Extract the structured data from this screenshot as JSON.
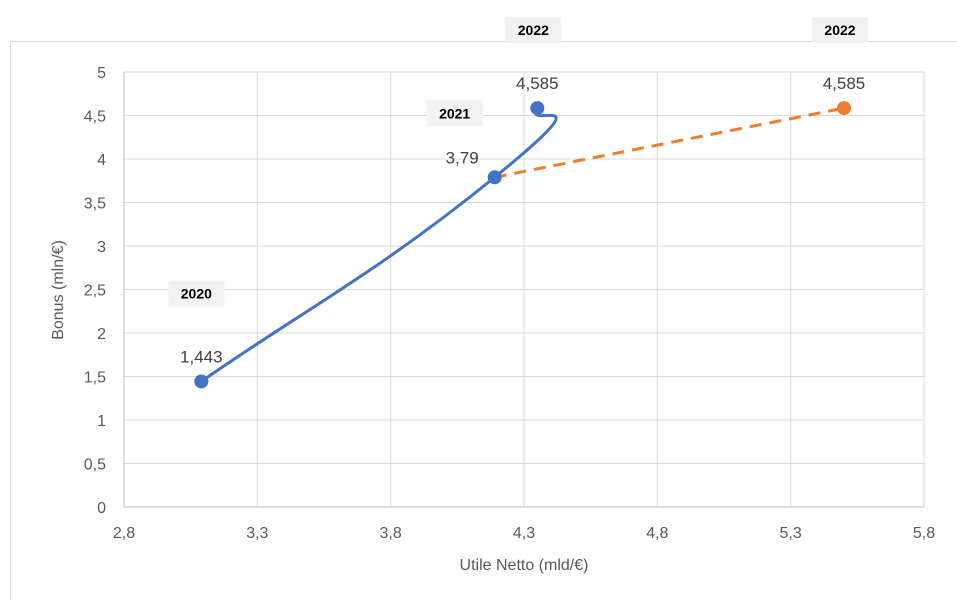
{
  "chart_data": {
    "type": "scatter",
    "title": "",
    "xlabel": "Utile Netto (mld/€)",
    "ylabel": "Bonus (mln/€)",
    "xlim": [
      2.8,
      5.8
    ],
    "ylim": [
      0,
      5
    ],
    "x_ticks": [
      "2,8",
      "3,3",
      "3,8",
      "4,3",
      "4,8",
      "5,3",
      "5,8"
    ],
    "y_ticks": [
      "0",
      "0,5",
      "1",
      "1,5",
      "2",
      "2,5",
      "3",
      "3,5",
      "4",
      "4,5",
      "5"
    ],
    "grid": true,
    "legend": "none",
    "series": [
      {
        "color": "#4472C4",
        "line_style": "solid-smooth",
        "points": [
          {
            "x": 3.09,
            "y": 1.443,
            "label": "1,443",
            "year": "2020"
          },
          {
            "x": 4.19,
            "y": 3.79,
            "label": "3,79",
            "year": "2021"
          },
          {
            "x": 4.35,
            "y": 4.585,
            "label": "4,585",
            "year": "2022"
          }
        ]
      },
      {
        "color": "#ED7D31",
        "line_style": "dashed",
        "points": [
          {
            "x": 4.19,
            "y": 3.79,
            "label": "",
            "year": ""
          },
          {
            "x": 5.5,
            "y": 4.585,
            "label": "4,585",
            "year": "2022"
          }
        ]
      }
    ]
  }
}
